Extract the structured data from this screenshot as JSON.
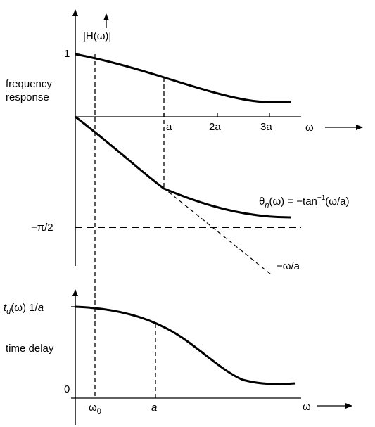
{
  "top_panel": {
    "magnitude_label": "|H(ω)|",
    "tick_one": "1",
    "side_label_line1": "frequency",
    "side_label_line2": "response",
    "tick_a": "a",
    "tick_2a": "2a",
    "tick_3a": "3a",
    "axis_omega": "ω",
    "neg_pi_over_2": "−π/2",
    "phase_lhs_theta": "θ",
    "phase_lhs_sub": "n",
    "phase_lhs_arg": "(ω) = −tan",
    "phase_lhs_sup": "−1",
    "phase_rhs": "(ω/a)",
    "asymptote_label": "−ω/a"
  },
  "bottom_panel": {
    "td_t": "t",
    "td_sub": "d",
    "td_arg": "(ω) 1/",
    "td_a": "a",
    "side_label": "time delay",
    "tick_zero": "0",
    "omega0_main": "ω",
    "omega0_sub": "0",
    "tick_a": "a",
    "axis_omega": "ω"
  }
}
